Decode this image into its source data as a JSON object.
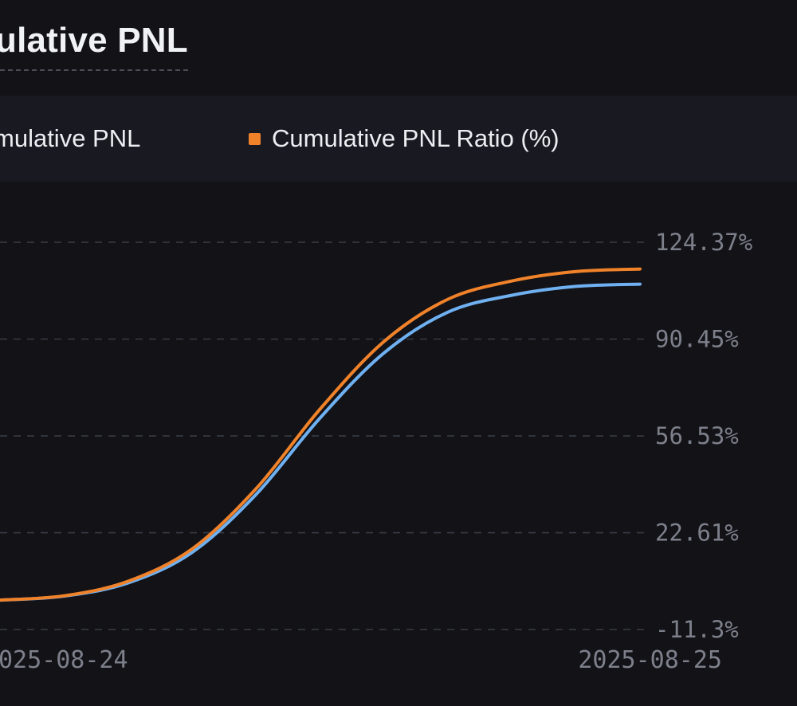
{
  "header": {
    "title": "ulative PNL"
  },
  "legend": {
    "items": [
      {
        "label": "mulative PNL",
        "color": "#6fb0f0",
        "swatch_visible": false
      },
      {
        "label": "Cumulative PNL Ratio (%)",
        "color": "#f0822a",
        "swatch_visible": true
      }
    ]
  },
  "chart_data": {
    "type": "line",
    "title": "",
    "x_tick_labels": [
      "025-08-24",
      "2025-08-25"
    ],
    "y_tick_labels": [
      "124.37%",
      "90.45%",
      "56.53%",
      "22.61%",
      "-11.3%"
    ],
    "y_ticks": [
      124.37,
      90.45,
      56.53,
      22.61,
      -11.3
    ],
    "ylim": [
      -11.3,
      124.37
    ],
    "grid": true,
    "grid_style": "dashed",
    "y_axis_side": "right",
    "x": [
      0,
      0.1,
      0.2,
      0.3,
      0.4,
      0.5,
      0.6,
      0.7,
      0.8,
      0.9,
      1.0
    ],
    "series": [
      {
        "name": "Cumulative PNL Ratio (%)",
        "color": "#f0822a",
        "values": [
          -1.0,
          0.5,
          5.6,
          16.9,
          38.0,
          65.9,
          89.6,
          104.4,
          110.8,
          114.1,
          115.0
        ]
      },
      {
        "name": "Cumulative PNL",
        "color": "#6fb0f0",
        "values": [
          -1.0,
          0.4,
          5.0,
          15.7,
          36.0,
          62.8,
          85.6,
          99.9,
          105.8,
          108.9,
          109.7
        ]
      }
    ]
  }
}
